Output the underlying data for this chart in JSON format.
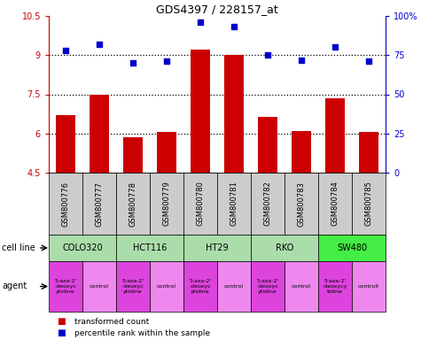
{
  "title": "GDS4397 / 228157_at",
  "samples": [
    "GSM800776",
    "GSM800777",
    "GSM800778",
    "GSM800779",
    "GSM800780",
    "GSM800781",
    "GSM800782",
    "GSM800783",
    "GSM800784",
    "GSM800785"
  ],
  "bar_values": [
    6.7,
    7.5,
    5.85,
    6.05,
    9.2,
    9.0,
    6.65,
    6.1,
    7.35,
    6.05
  ],
  "dot_values": [
    78,
    82,
    70,
    71,
    96,
    93,
    75,
    72,
    80,
    71
  ],
  "bar_color": "#cc0000",
  "dot_color": "#0000cc",
  "ylim_left": [
    4.5,
    10.5
  ],
  "ylim_right": [
    0,
    100
  ],
  "yticks_left": [
    4.5,
    6.0,
    7.5,
    9.0,
    10.5
  ],
  "yticks_right": [
    0,
    25,
    50,
    75,
    100
  ],
  "ytick_labels_left": [
    "4.5",
    "6",
    "7.5",
    "9",
    "10.5"
  ],
  "ytick_labels_right": [
    "0",
    "25",
    "50",
    "75",
    "100%"
  ],
  "hlines": [
    6.0,
    7.5,
    9.0
  ],
  "cell_lines": [
    {
      "name": "COLO320",
      "start": 0,
      "end": 2,
      "color": "#aaddaa"
    },
    {
      "name": "HCT116",
      "start": 2,
      "end": 4,
      "color": "#aaddaa"
    },
    {
      "name": "HT29",
      "start": 4,
      "end": 6,
      "color": "#aaddaa"
    },
    {
      "name": "RKO",
      "start": 6,
      "end": 8,
      "color": "#aaddaa"
    },
    {
      "name": "SW480",
      "start": 8,
      "end": 10,
      "color": "#44ee44"
    }
  ],
  "agents": [
    {
      "name": "5-aza-2'\n-deoxyc\nytidine",
      "type": "drug",
      "col": 0
    },
    {
      "name": "control",
      "type": "control",
      "col": 1
    },
    {
      "name": "5-aza-2'\n-deoxyc\nytidine",
      "type": "drug",
      "col": 2
    },
    {
      "name": "control",
      "type": "control",
      "col": 3
    },
    {
      "name": "5-aza-2'\n-deoxyc\nytidine",
      "type": "drug",
      "col": 4
    },
    {
      "name": "control",
      "type": "control",
      "col": 5
    },
    {
      "name": "5-aza-2'\n-deoxyc\nytidine",
      "type": "drug",
      "col": 6
    },
    {
      "name": "control",
      "type": "control",
      "col": 7
    },
    {
      "name": "5-aza-2'\n-deoxycy\ntidine",
      "type": "drug",
      "col": 8
    },
    {
      "name": "controll",
      "type": "control",
      "col": 9
    }
  ],
  "drug_color": "#dd44dd",
  "control_color": "#ee88ee",
  "legend_items": [
    {
      "label": "transformed count",
      "color": "#cc0000"
    },
    {
      "label": "percentile rank within the sample",
      "color": "#0000cc"
    }
  ],
  "row_label_cell_line": "cell line",
  "row_label_agent": "agent",
  "sample_bg_color": "#cccccc"
}
